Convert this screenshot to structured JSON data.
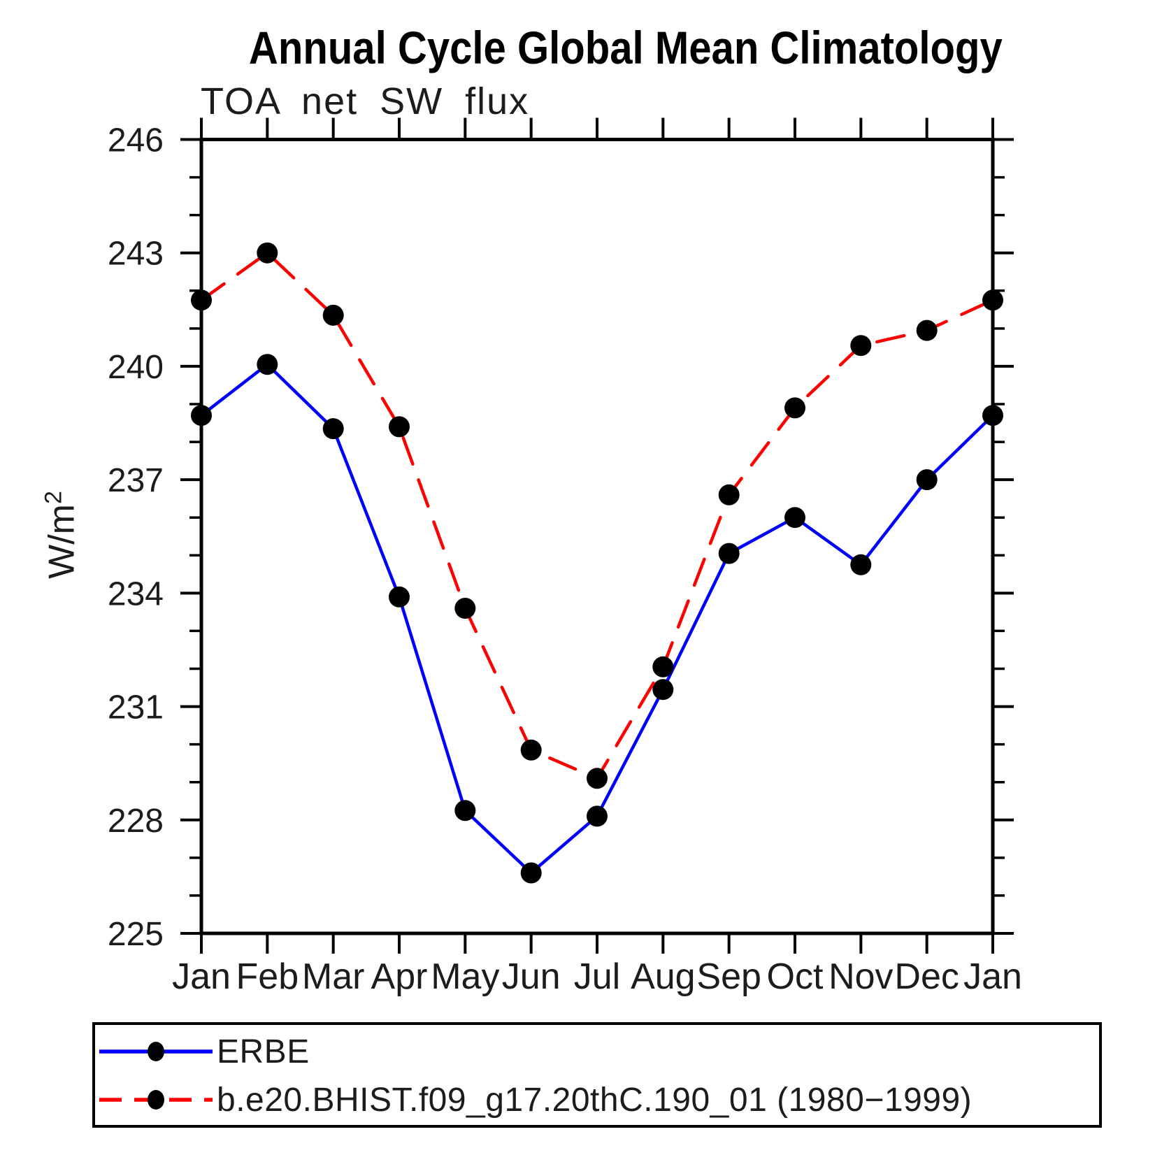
{
  "title": "Annual Cycle Global Mean Climatology",
  "subtitle": "TOA net SW flux",
  "y_axis": {
    "label_base": "W/m",
    "label_superscript": "2"
  },
  "chart_data": {
    "type": "line",
    "x_categories": [
      "Jan",
      "Feb",
      "Mar",
      "Apr",
      "May",
      "Jun",
      "Jul",
      "Aug",
      "Sep",
      "Oct",
      "Nov",
      "Dec",
      "Jan"
    ],
    "xlabel": "",
    "ylabel": "W/m^2",
    "ylim": [
      225,
      246
    ],
    "y_major_ticks": [
      225,
      228,
      231,
      234,
      237,
      240,
      243,
      246
    ],
    "y_minor_tick_step": 1,
    "grid": false,
    "legend_position": "bottom-left-box",
    "series": [
      {
        "name": "ERBE",
        "color": "#0000ff",
        "line_style": "solid",
        "marker": "filled-circle",
        "marker_color": "#000000",
        "values": [
          238.7,
          240.05,
          238.35,
          233.9,
          228.25,
          226.6,
          228.1,
          231.45,
          235.05,
          236.0,
          234.75,
          237.0,
          238.7
        ]
      },
      {
        "name": "b.e20.BHIST.f09_g17.20thC.190_01 (1980−1999)",
        "color": "#ff0000",
        "line_style": "dashed",
        "marker": "filled-circle",
        "marker_color": "#000000",
        "values": [
          241.75,
          243.0,
          241.35,
          238.4,
          233.6,
          229.85,
          229.1,
          232.05,
          236.6,
          238.9,
          240.55,
          240.95,
          241.75
        ]
      }
    ]
  }
}
